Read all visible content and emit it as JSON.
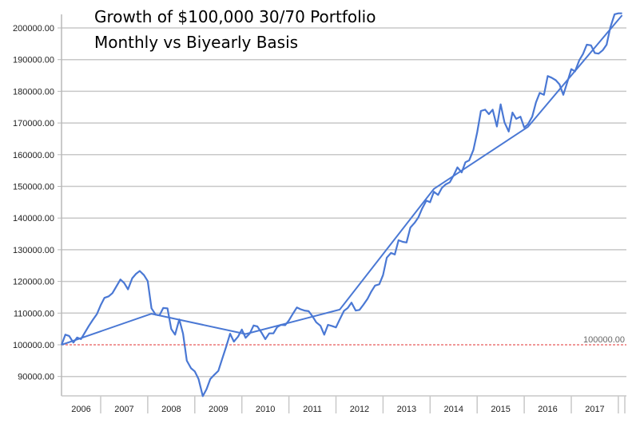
{
  "chart_data": {
    "type": "line",
    "title": "Growth of $100,000 30/70 Portfolio",
    "subtitle": "Monthly vs Biyearly Basis",
    "xlabel": "",
    "ylabel": "",
    "ylim": [
      83000,
      204500
    ],
    "y_ticks": [
      "90000.00",
      "100000.00",
      "110000.00",
      "120000.00",
      "130000.00",
      "140000.00",
      "150000.00",
      "160000.00",
      "170000.00",
      "180000.00",
      "190000.00",
      "200000.00"
    ],
    "y_tick_values": [
      90000,
      100000,
      110000,
      120000,
      130000,
      140000,
      150000,
      160000,
      170000,
      180000,
      190000,
      200000
    ],
    "x_ticks": [
      "2006",
      "2007",
      "2008",
      "2009",
      "2010",
      "2011",
      "2012",
      "2013",
      "2014",
      "2015",
      "2016",
      "2017"
    ],
    "x_start": 2006.17,
    "x_end": 2018.08,
    "grid": true,
    "legend": "none",
    "reference_line": {
      "value": 100000,
      "label": "100000.00",
      "color": "#e03030"
    },
    "series": [
      {
        "name": "Monthly",
        "color": "#4a78d4",
        "x": [
          2006.17,
          2006.25,
          2006.33,
          2006.42,
          2006.5,
          2006.58,
          2006.67,
          2006.75,
          2006.83,
          2006.92,
          2007.0,
          2007.08,
          2007.17,
          2007.25,
          2007.33,
          2007.42,
          2007.5,
          2007.58,
          2007.67,
          2007.75,
          2007.83,
          2007.92,
          2008.0,
          2008.08,
          2008.17,
          2008.25,
          2008.33,
          2008.42,
          2008.5,
          2008.58,
          2008.67,
          2008.75,
          2008.83,
          2008.92,
          2009.0,
          2009.08,
          2009.17,
          2009.25,
          2009.33,
          2009.42,
          2009.5,
          2009.58,
          2009.67,
          2009.75,
          2009.83,
          2009.92,
          2010.0,
          2010.08,
          2010.17,
          2010.25,
          2010.33,
          2010.42,
          2010.5,
          2010.58,
          2010.67,
          2010.75,
          2010.83,
          2010.92,
          2011.0,
          2011.08,
          2011.17,
          2011.25,
          2011.33,
          2011.42,
          2011.5,
          2011.58,
          2011.67,
          2011.75,
          2011.83,
          2011.92,
          2012.0,
          2012.08,
          2012.17,
          2012.25,
          2012.33,
          2012.42,
          2012.5,
          2012.58,
          2012.67,
          2012.75,
          2012.83,
          2012.92,
          2013.0,
          2013.08,
          2013.17,
          2013.25,
          2013.33,
          2013.42,
          2013.5,
          2013.58,
          2013.67,
          2013.75,
          2013.83,
          2013.92,
          2014.0,
          2014.08,
          2014.17,
          2014.25,
          2014.33,
          2014.42,
          2014.5,
          2014.58,
          2014.67,
          2014.75,
          2014.83,
          2014.92,
          2015.0,
          2015.08,
          2015.17,
          2015.25,
          2015.33,
          2015.42,
          2015.5,
          2015.58,
          2015.67,
          2015.75,
          2015.83,
          2015.92,
          2016.0,
          2016.08,
          2016.17,
          2016.25,
          2016.33,
          2016.42,
          2016.5,
          2016.58,
          2016.67,
          2016.75,
          2016.83,
          2016.92,
          2017.0,
          2017.08,
          2017.17,
          2017.25,
          2017.33,
          2017.42,
          2017.5,
          2017.58,
          2017.67,
          2017.75,
          2017.83,
          2017.92,
          2018.0,
          2018.08
        ],
        "values": [
          100000,
          103200,
          102800,
          100700,
          102300,
          101800,
          104000,
          106000,
          107800,
          109700,
          112500,
          114800,
          115300,
          116300,
          118300,
          120600,
          119500,
          117500,
          121000,
          122400,
          123300,
          122000,
          120100,
          111500,
          109500,
          109300,
          111600,
          111500,
          105000,
          103200,
          108000,
          103500,
          95000,
          92600,
          91600,
          89200,
          83800,
          86000,
          89200,
          90600,
          91800,
          95500,
          99600,
          103500,
          101000,
          102600,
          104800,
          102200,
          103600,
          106100,
          105800,
          103800,
          101800,
          103600,
          103600,
          105600,
          106300,
          106200,
          107700,
          109700,
          111800,
          111200,
          110800,
          110600,
          109000,
          107100,
          106000,
          103200,
          106300,
          105900,
          105500,
          108000,
          110700,
          111600,
          113300,
          110800,
          111000,
          112600,
          114500,
          116800,
          118700,
          119100,
          122000,
          127500,
          129000,
          128500,
          133000,
          132500,
          132300,
          137000,
          138500,
          140200,
          143000,
          145500,
          145000,
          148300,
          147300,
          149500,
          150600,
          151300,
          153500,
          156000,
          154400,
          157600,
          158200,
          161500,
          167000,
          173800,
          174200,
          172800,
          174200,
          168900,
          175900,
          170200,
          167300,
          173300,
          171300,
          172000,
          168600,
          169600,
          172000,
          176500,
          179500,
          178900,
          184800,
          184300,
          183500,
          182200,
          178900,
          183100,
          187000,
          186300,
          189800,
          191800,
          194700,
          194500,
          192100,
          191900,
          193000,
          194700,
          200200,
          204300,
          204600,
          204600
        ]
      },
      {
        "name": "Biyearly",
        "color": "#4a78d4",
        "x": [
          2006.17,
          2008.08,
          2010.08,
          2012.08,
          2014.08,
          2016.08,
          2018.08
        ],
        "values": [
          100000,
          109800,
          103400,
          111100,
          149200,
          168800,
          204000
        ]
      }
    ]
  }
}
